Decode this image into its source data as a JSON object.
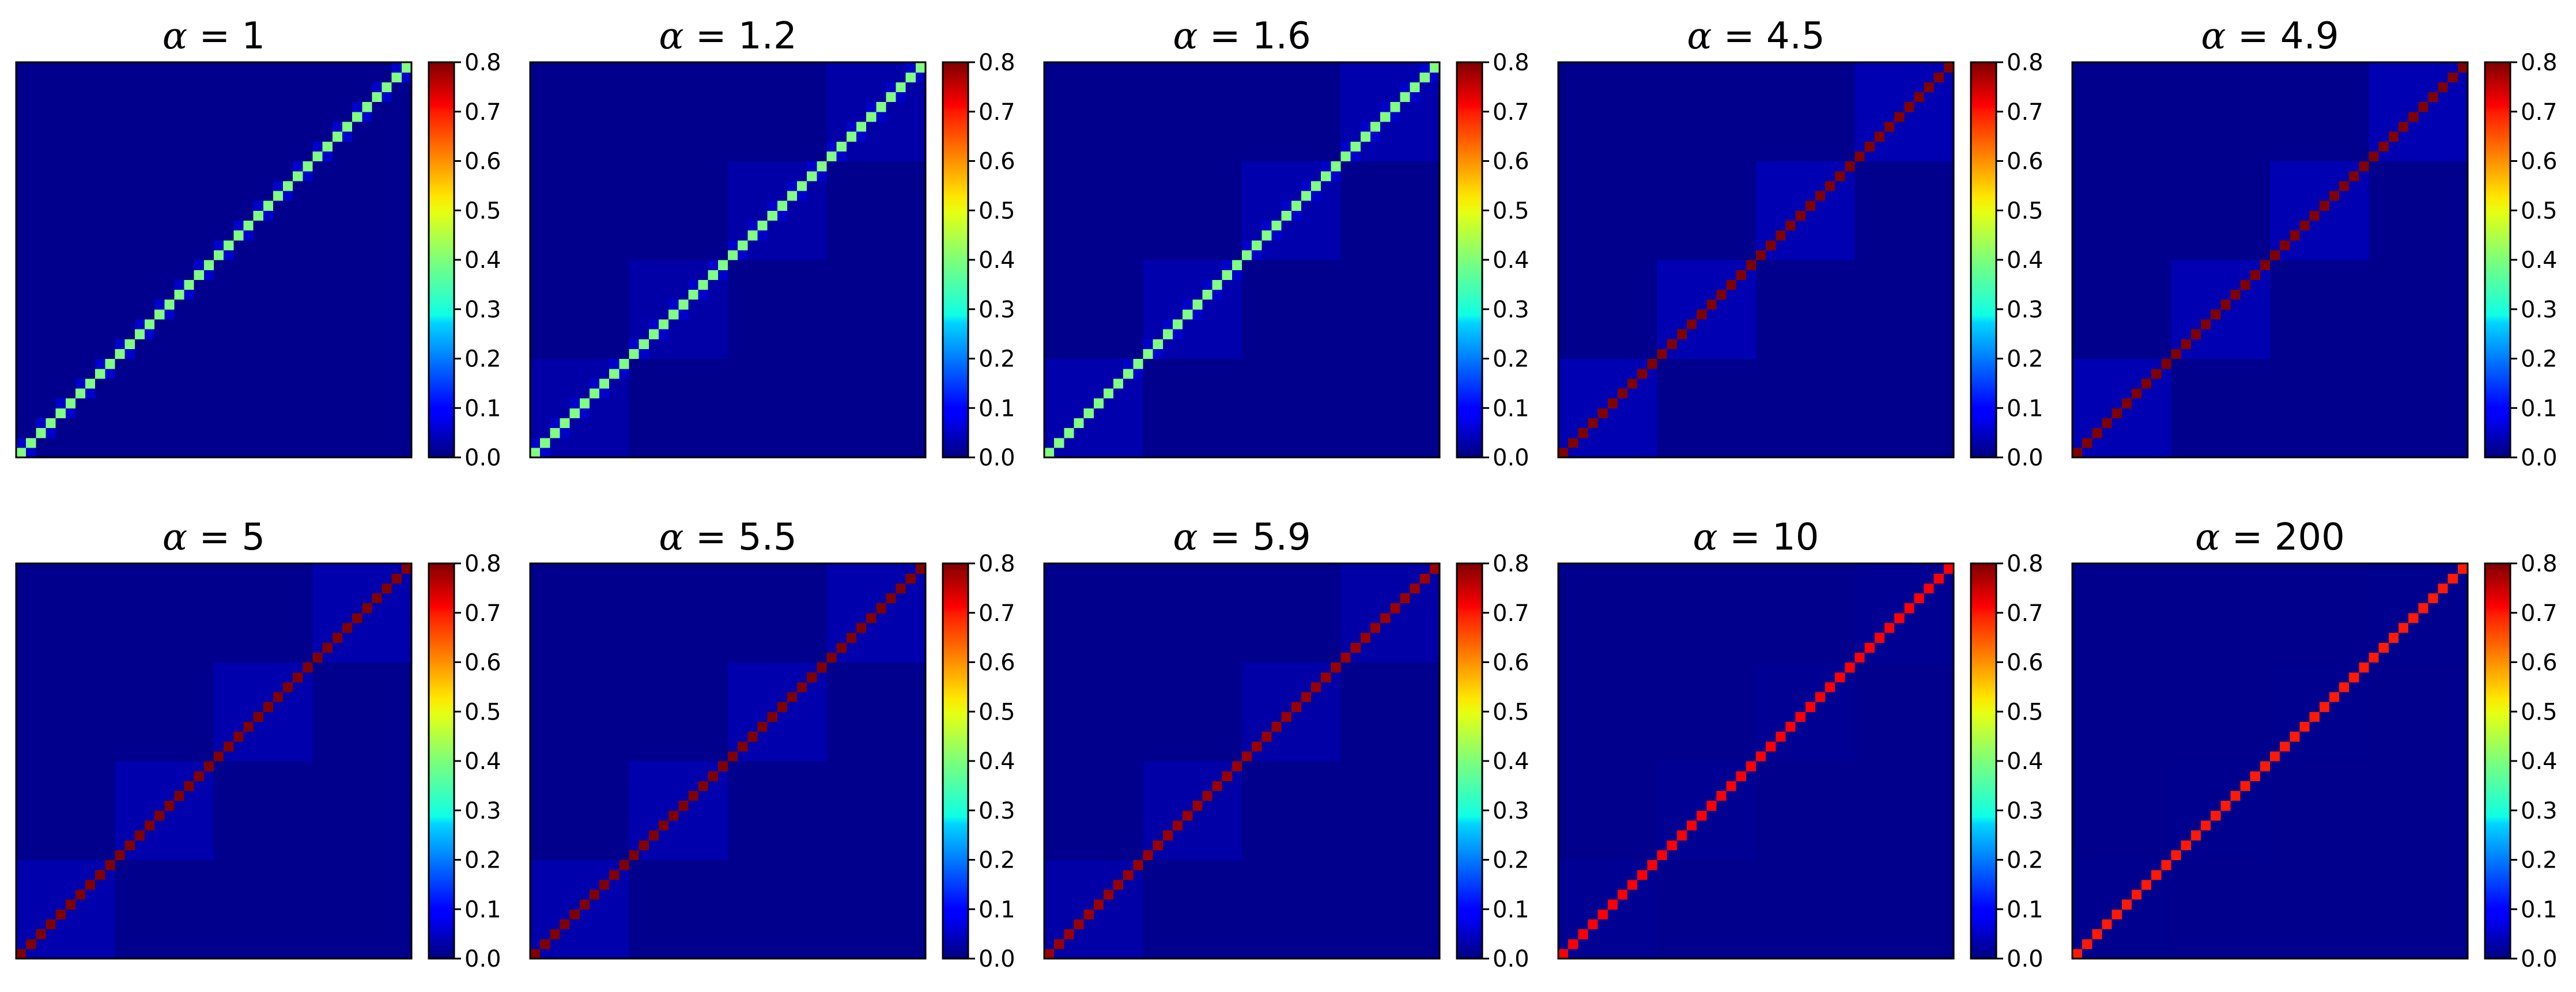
{
  "chart_data": {
    "type": "heatmap",
    "title": "",
    "layout": "2x5 grid of heatmap panels, each with its own vertical colorbar on the right",
    "colormap": "jet",
    "color_range": [
      0,
      0.8
    ],
    "colorbar_ticks": [
      "0.0",
      "0.1",
      "0.2",
      "0.3",
      "0.4",
      "0.5",
      "0.6",
      "0.7",
      "0.8"
    ],
    "matrix_size": 40,
    "grid": false,
    "axes_ticks_visible": false,
    "note_matrix": "Symmetric matrix plotted with origin at lower-left; main diagonal runs bottom-left to top-right. Cells are 0-indexed (i,j).",
    "panels": [
      {
        "alpha_label": "1",
        "title": "α = 1",
        "diagonal_value": 0.4,
        "pattern": "pair-blocks",
        "pair_offdiag_value": 0.06,
        "pair_block_set": "all",
        "community_block_size": 10,
        "community_value": 0.01,
        "background_value": 0.01
      },
      {
        "alpha_label": "1.2",
        "title": "α = 1.2",
        "diagonal_value": 0.4,
        "pattern": "pair-blocks",
        "pair_offdiag_value": 0.06,
        "pair_block_set": "all",
        "community_block_size": 10,
        "community_value": 0.03,
        "background_value": 0.01
      },
      {
        "alpha_label": "1.6",
        "title": "α = 1.6",
        "diagonal_value": 0.4,
        "pattern": "pair-blocks",
        "pair_offdiag_value": 0.06,
        "pair_block_set": "partial",
        "community_block_size": 10,
        "community_value": 0.035,
        "background_value": 0.01
      },
      {
        "alpha_label": "4.5",
        "title": "α = 4.5",
        "diagonal_value": 0.8,
        "pattern": "diagonal",
        "community_block_size": 10,
        "community_value": 0.04,
        "background_value": 0.01
      },
      {
        "alpha_label": "4.9",
        "title": "α = 4.9",
        "diagonal_value": 0.8,
        "pattern": "diagonal",
        "community_block_size": 10,
        "community_value": 0.04,
        "background_value": 0.01
      },
      {
        "alpha_label": "5",
        "title": "α = 5",
        "diagonal_value": 0.8,
        "pattern": "diagonal",
        "community_block_size": 10,
        "community_value": 0.035,
        "background_value": 0.01
      },
      {
        "alpha_label": "5.5",
        "title": "α = 5.5",
        "diagonal_value": 0.8,
        "pattern": "diagonal",
        "community_block_size": 10,
        "community_value": 0.035,
        "background_value": 0.01
      },
      {
        "alpha_label": "5.9",
        "title": "α = 5.9",
        "diagonal_value": 0.78,
        "pattern": "diagonal",
        "community_block_size": 10,
        "community_value": 0.03,
        "background_value": 0.01
      },
      {
        "alpha_label": "10",
        "title": "α = 10",
        "diagonal_value": 0.7,
        "pattern": "diagonal",
        "community_block_size": 10,
        "community_value": 0.015,
        "background_value": 0.01
      },
      {
        "alpha_label": "200",
        "title": "α = 200",
        "diagonal_value": 0.68,
        "pattern": "diagonal",
        "community_block_size": 10,
        "community_value": 0.012,
        "background_value": 0.01
      }
    ]
  }
}
